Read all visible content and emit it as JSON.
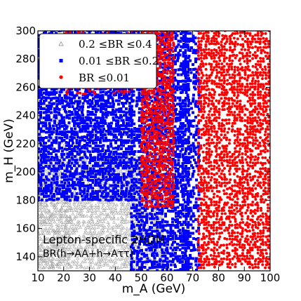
{
  "chart_data": {
    "type": "scatter",
    "title": "",
    "xlabel": "m_A (GeV)",
    "ylabel": "m_H (GeV)",
    "xlim": [
      10,
      100
    ],
    "ylim": [
      130,
      300
    ],
    "xticks": [
      10,
      20,
      30,
      40,
      50,
      60,
      70,
      80,
      90,
      100
    ],
    "yticks": [
      140,
      160,
      180,
      200,
      220,
      240,
      260,
      280,
      300
    ],
    "grid": false,
    "legend_position": "top-left",
    "annotation_title": "Lepton-specific 2HDM",
    "annotation_subtitle": "BR(h→AA+h→Aττ)",
    "series": [
      {
        "name": "0.2 ≤BR ≤0.4",
        "marker": "triangle",
        "color": "#a0a0a0",
        "regions": [
          {
            "x": [
              10,
              22
            ],
            "y": [
              132,
              290
            ],
            "density": 0.35
          },
          {
            "x": [
              10,
              58
            ],
            "y": [
              132,
              210
            ],
            "density": 0.75
          }
        ]
      },
      {
        "name": "0.01 ≤BR ≤0.2",
        "marker": "square",
        "color": "#0000ff",
        "regions": [
          {
            "x": [
              10,
              46
            ],
            "y": [
              180,
              300
            ],
            "density": 0.8
          },
          {
            "x": [
              46,
              68
            ],
            "y": [
              130,
              300
            ],
            "density": 0.7
          },
          {
            "x": [
              66,
              72
            ],
            "y": [
              130,
              300
            ],
            "density": 0.55
          }
        ]
      },
      {
        "name": "BR ≤0.01",
        "marker": "dot",
        "color": "#ff0000",
        "regions": [
          {
            "x": [
              50,
              62
            ],
            "y": [
              175,
              300
            ],
            "density": 0.85
          },
          {
            "x": [
              72,
              100
            ],
            "y": [
              132,
              300
            ],
            "density": 0.7
          },
          {
            "x": [
              20,
              48
            ],
            "y": [
              255,
              300
            ],
            "density": 0.25
          }
        ]
      }
    ]
  }
}
